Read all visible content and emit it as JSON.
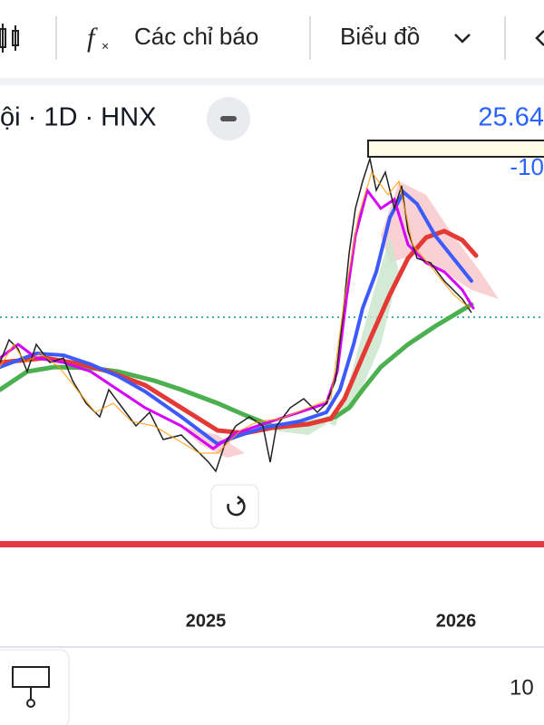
{
  "toolbar": {
    "indicators": "Các chỉ báo",
    "chart_type": "Biểu đồ"
  },
  "symbol": "ội · 1D · HNX",
  "price_label": "25.64",
  "change_label": "-10",
  "x_axis": {
    "labels": [
      "2025",
      "2026"
    ]
  },
  "footer": {
    "value": "10"
  }
}
